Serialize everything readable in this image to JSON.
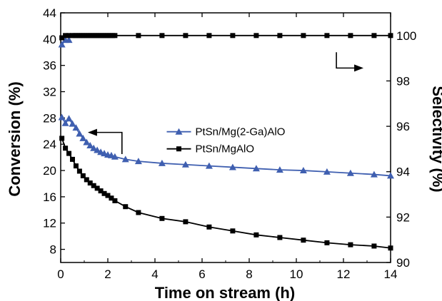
{
  "chart_data": {
    "type": "line",
    "xlabel": "Time on stream (h)",
    "ylabel_left": "Conversion (%)",
    "ylabel_right": "Selectivity (%)",
    "xlim": [
      0,
      14
    ],
    "ylim_left": [
      6,
      44
    ],
    "ylim_right": [
      90,
      101
    ],
    "x_ticks": [
      0,
      2,
      4,
      6,
      8,
      10,
      12,
      14
    ],
    "y_left_ticks": [
      8,
      12,
      16,
      20,
      24,
      28,
      32,
      36,
      40,
      44
    ],
    "y_right_ticks": [
      90,
      92,
      94,
      96,
      98,
      100
    ],
    "grid": false,
    "legend_position": "center",
    "colors": {
      "blue": "#3f5fb0",
      "black": "#000000"
    },
    "series": [
      {
        "name": "PtSn/Mg(2-Ga)AlO",
        "axis": "left",
        "marker": "triangle",
        "color": "#3f5fb0",
        "x": [
          0.05,
          0.2,
          0.35,
          0.5,
          0.65,
          0.8,
          0.95,
          1.1,
          1.25,
          1.4,
          1.55,
          1.7,
          1.85,
          2.0,
          2.15,
          2.3,
          2.75,
          3.3,
          4.3,
          5.3,
          6.3,
          7.3,
          8.3,
          9.3,
          10.3,
          11.3,
          12.3,
          13.3,
          14.0
        ],
        "y": [
          28.1,
          27.2,
          27.9,
          27.1,
          26.5,
          25.6,
          24.9,
          24.3,
          23.8,
          23.4,
          23.1,
          22.8,
          22.6,
          22.4,
          22.3,
          22.1,
          21.7,
          21.4,
          21.1,
          20.9,
          20.7,
          20.5,
          20.3,
          20.1,
          20.0,
          19.8,
          19.6,
          19.4,
          19.2
        ]
      },
      {
        "name": "PtSn/MgAlO",
        "axis": "left",
        "marker": "square",
        "color": "#000000",
        "x": [
          0.05,
          0.2,
          0.35,
          0.5,
          0.65,
          0.8,
          0.95,
          1.1,
          1.25,
          1.4,
          1.55,
          1.7,
          1.85,
          2.0,
          2.15,
          2.3,
          2.75,
          3.3,
          4.3,
          5.3,
          6.3,
          7.3,
          8.3,
          9.3,
          10.3,
          11.3,
          12.3,
          13.3,
          14.0
        ],
        "y": [
          24.9,
          23.4,
          22.6,
          21.7,
          20.7,
          19.9,
          19.2,
          18.6,
          18.1,
          17.7,
          17.3,
          16.9,
          16.5,
          16.2,
          15.8,
          15.4,
          14.5,
          13.6,
          12.7,
          12.2,
          11.4,
          10.8,
          10.2,
          9.8,
          9.4,
          9.0,
          8.7,
          8.5,
          8.2
        ]
      },
      {
        "name": "",
        "axis": "right",
        "marker": "triangle",
        "color": "#3f5fb0",
        "x": [
          0.05,
          0.2,
          0.35
        ],
        "y": [
          99.6,
          99.8,
          99.8
        ]
      },
      {
        "name": "",
        "axis": "right",
        "marker": "square",
        "color": "#000000",
        "x": [
          0.05,
          0.2,
          0.35,
          0.5,
          0.6,
          0.7,
          0.8,
          0.9,
          1.0,
          1.1,
          1.2,
          1.3,
          1.4,
          1.5,
          1.6,
          1.7,
          1.8,
          1.9,
          2.0,
          2.1,
          2.2,
          2.3,
          3.3,
          4.3,
          5.3,
          6.3,
          7.3,
          8.3,
          9.3,
          10.3,
          11.3,
          12.3,
          13.3,
          14.0
        ],
        "y": [
          99.9,
          100,
          100,
          100,
          100,
          100,
          100,
          100,
          100,
          100,
          100,
          100,
          100,
          100,
          100,
          100,
          100,
          100,
          100,
          100,
          100,
          100,
          100,
          100,
          100,
          100,
          100,
          100,
          100,
          100,
          100,
          100,
          100,
          100
        ]
      }
    ]
  }
}
